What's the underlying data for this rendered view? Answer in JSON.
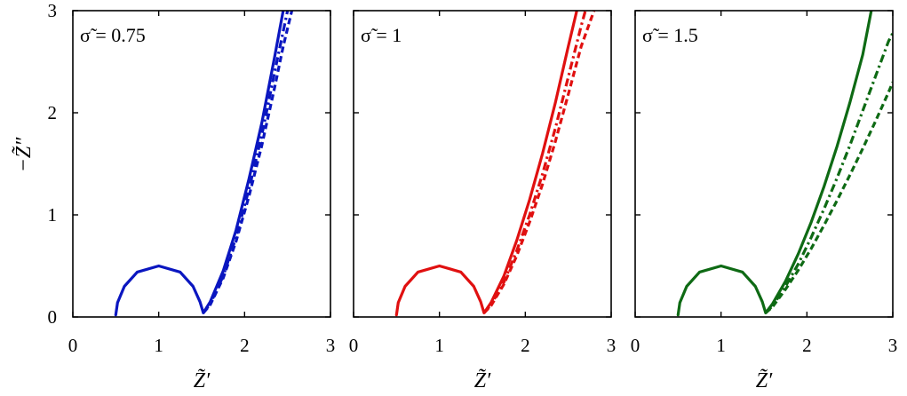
{
  "chart_data": [
    {
      "type": "line",
      "panel": "left",
      "annotation": "σ̃ = 0.75",
      "color": "#0a16c0",
      "xlim": [
        0,
        3
      ],
      "ylim": [
        0,
        3
      ],
      "xticks": [
        "0",
        "1",
        "2",
        "3"
      ],
      "yticks": [
        "0",
        "1",
        "2",
        "3"
      ],
      "xlabel": "Z̃′",
      "ylabel": "−Z̃″",
      "series": [
        {
          "style": "solid",
          "x": [
            0.5,
            0.52,
            0.6,
            0.75,
            1.0,
            1.25,
            1.4,
            1.48,
            1.52,
            1.6,
            1.75,
            1.9,
            2.05,
            2.2,
            2.35,
            2.45
          ],
          "y": [
            0.02,
            0.14,
            0.3,
            0.44,
            0.5,
            0.44,
            0.3,
            0.15,
            0.04,
            0.15,
            0.45,
            0.85,
            1.35,
            1.9,
            2.55,
            3.0
          ]
        },
        {
          "style": "dashdot",
          "x": [
            1.52,
            1.6,
            1.75,
            1.9,
            2.05,
            2.2,
            2.35,
            2.5
          ],
          "y": [
            0.04,
            0.13,
            0.4,
            0.78,
            1.25,
            1.78,
            2.4,
            3.0
          ]
        },
        {
          "style": "dashed",
          "x": [
            1.52,
            1.6,
            1.75,
            1.9,
            2.05,
            2.2,
            2.35,
            2.45,
            2.55
          ],
          "y": [
            0.04,
            0.12,
            0.38,
            0.74,
            1.18,
            1.68,
            2.25,
            2.65,
            3.0
          ]
        }
      ]
    },
    {
      "type": "line",
      "panel": "middle",
      "annotation": "σ̃ = 1",
      "color": "#e01010",
      "xlim": [
        0,
        3
      ],
      "ylim": [
        0,
        3
      ],
      "xticks": [
        "0",
        "1",
        "2",
        "3"
      ],
      "yticks": [
        "0",
        "1",
        "2",
        "3"
      ],
      "xlabel": "Z̃′",
      "ylabel": "",
      "series": [
        {
          "style": "solid",
          "x": [
            0.5,
            0.52,
            0.6,
            0.75,
            1.0,
            1.25,
            1.4,
            1.48,
            1.52,
            1.6,
            1.75,
            1.9,
            2.05,
            2.2,
            2.35,
            2.5,
            2.6
          ],
          "y": [
            0.02,
            0.14,
            0.3,
            0.44,
            0.5,
            0.44,
            0.3,
            0.15,
            0.04,
            0.14,
            0.4,
            0.75,
            1.15,
            1.6,
            2.1,
            2.65,
            3.0
          ]
        },
        {
          "style": "dashdot",
          "x": [
            1.52,
            1.6,
            1.75,
            1.9,
            2.05,
            2.2,
            2.35,
            2.5,
            2.65,
            2.7
          ],
          "y": [
            0.04,
            0.12,
            0.34,
            0.65,
            1.0,
            1.4,
            1.85,
            2.35,
            2.85,
            3.0
          ]
        },
        {
          "style": "dashed",
          "x": [
            1.52,
            1.6,
            1.75,
            1.9,
            2.05,
            2.2,
            2.35,
            2.5,
            2.65,
            2.8
          ],
          "y": [
            0.04,
            0.11,
            0.32,
            0.6,
            0.93,
            1.3,
            1.72,
            2.18,
            2.65,
            3.0
          ]
        }
      ]
    },
    {
      "type": "line",
      "panel": "right",
      "annotation": "σ̃ = 1.5",
      "color": "#0e6a14",
      "xlim": [
        0,
        3
      ],
      "ylim": [
        0,
        3
      ],
      "xticks": [
        "0",
        "1",
        "2",
        "3"
      ],
      "yticks": [
        "0",
        "1",
        "2",
        "3"
      ],
      "xlabel": "Z̃′",
      "ylabel": "",
      "series": [
        {
          "style": "solid",
          "x": [
            0.5,
            0.52,
            0.6,
            0.75,
            1.0,
            1.25,
            1.4,
            1.48,
            1.52,
            1.6,
            1.75,
            1.9,
            2.05,
            2.2,
            2.35,
            2.5,
            2.65,
            2.75
          ],
          "y": [
            0.02,
            0.14,
            0.3,
            0.44,
            0.5,
            0.44,
            0.3,
            0.15,
            0.04,
            0.13,
            0.35,
            0.62,
            0.93,
            1.28,
            1.67,
            2.1,
            2.57,
            3.0
          ]
        },
        {
          "style": "dashdot",
          "x": [
            1.52,
            1.6,
            1.75,
            1.9,
            2.05,
            2.2,
            2.35,
            2.5,
            2.65,
            2.8,
            2.95,
            3.0
          ],
          "y": [
            0.04,
            0.11,
            0.3,
            0.52,
            0.78,
            1.06,
            1.36,
            1.68,
            2.02,
            2.36,
            2.7,
            2.78
          ]
        },
        {
          "style": "dashed",
          "x": [
            1.52,
            1.6,
            1.75,
            1.9,
            2.05,
            2.2,
            2.35,
            2.5,
            2.65,
            2.8,
            2.95,
            3.0
          ],
          "y": [
            0.04,
            0.1,
            0.27,
            0.46,
            0.67,
            0.9,
            1.14,
            1.39,
            1.65,
            1.92,
            2.2,
            2.3
          ]
        }
      ]
    }
  ]
}
